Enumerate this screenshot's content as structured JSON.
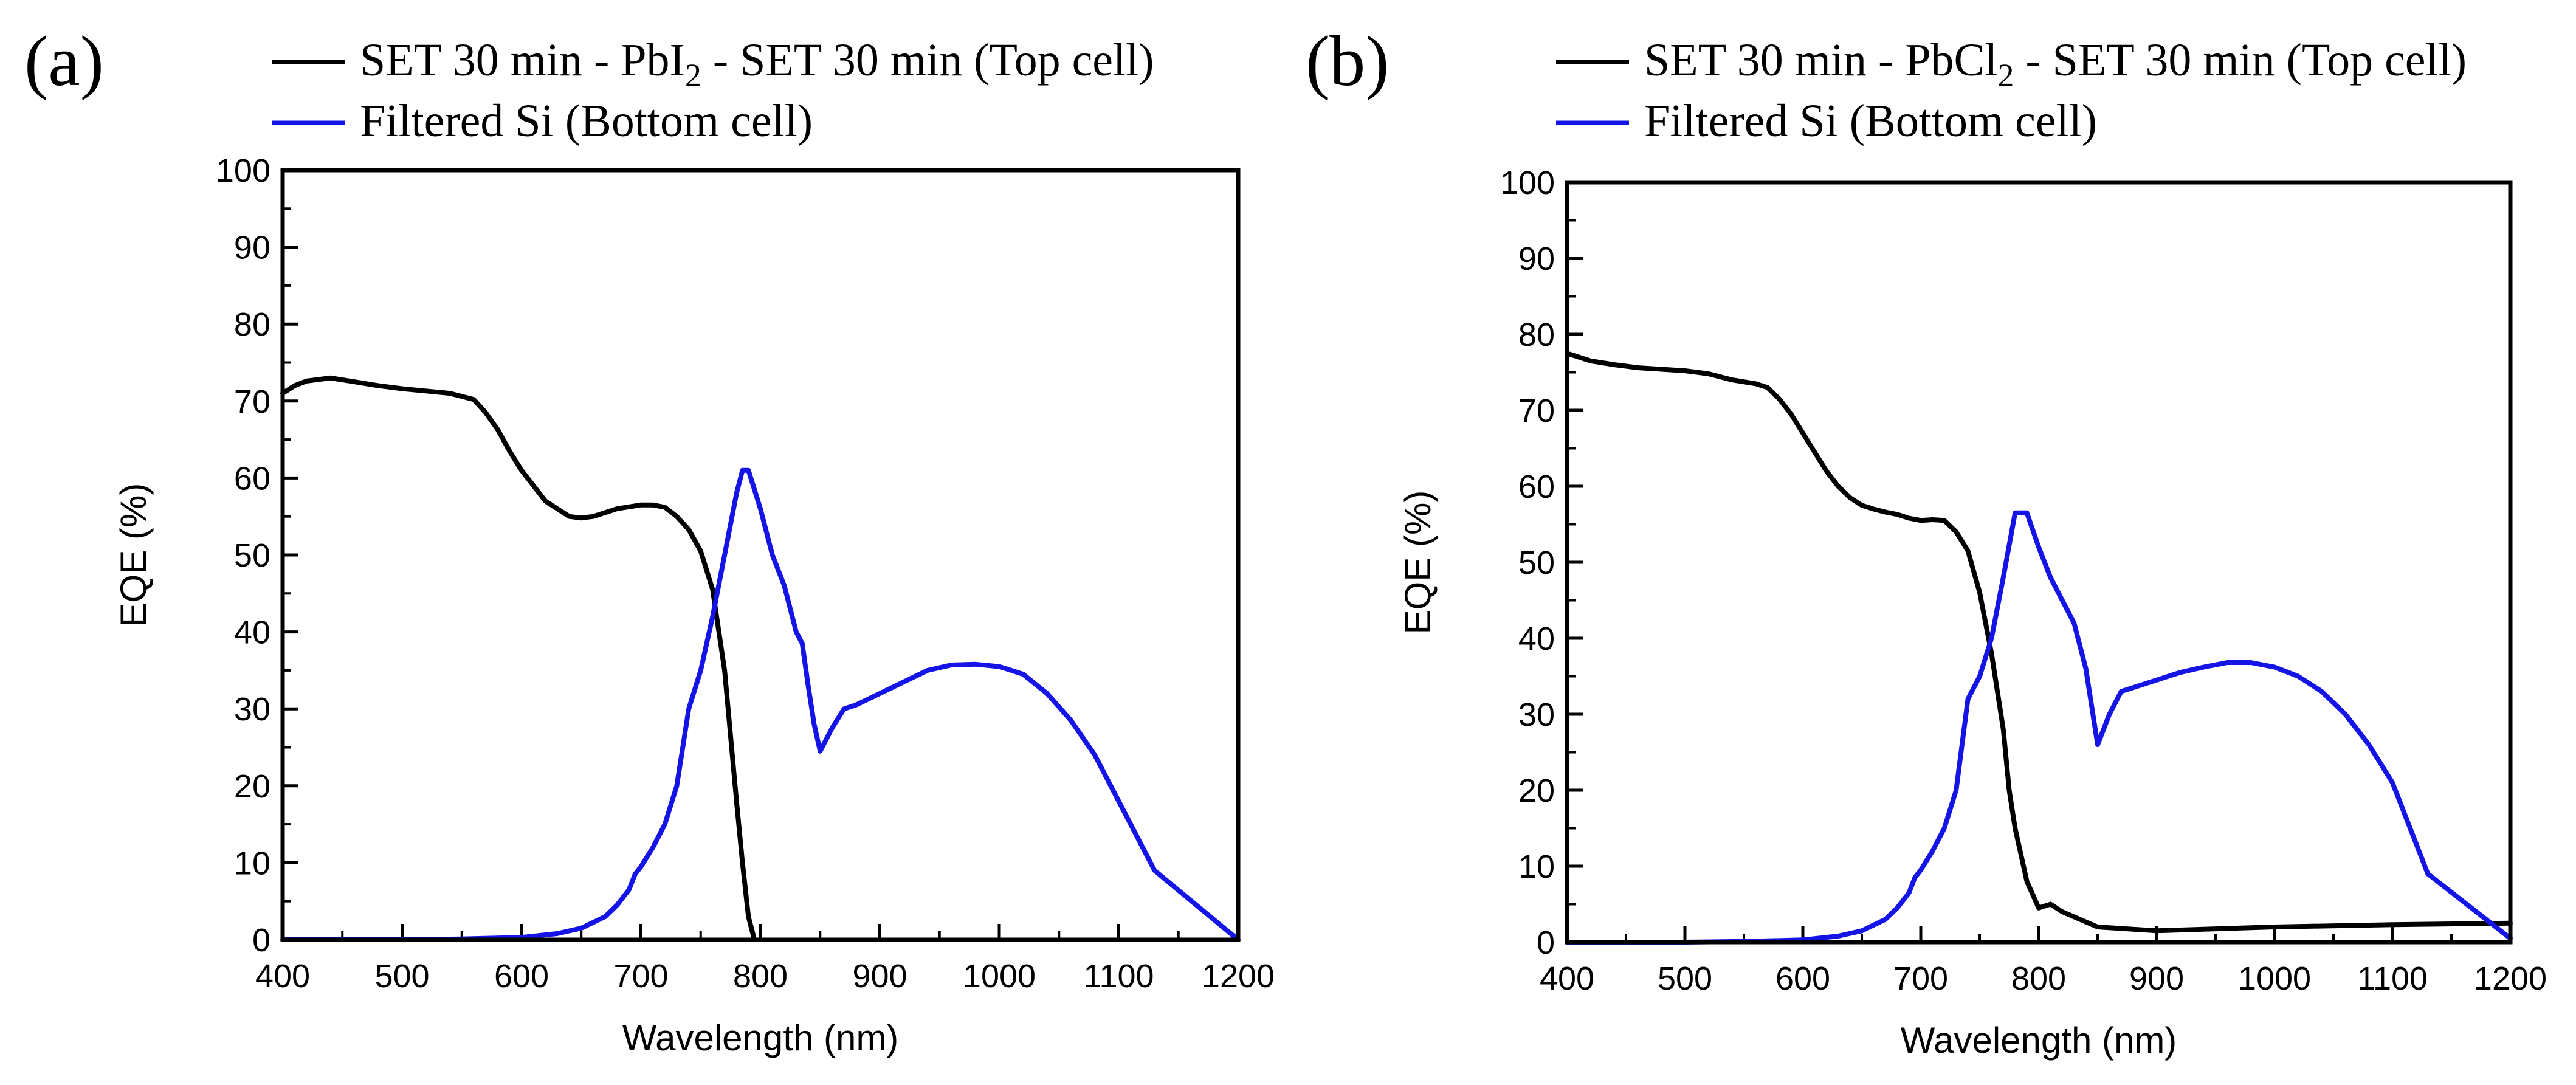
{
  "colors": {
    "top": "#000000",
    "bottom": "#1414e6",
    "axis": "#000000"
  },
  "chart_data": [
    {
      "type": "line",
      "panel_label": "(a)",
      "xlabel": "Wavelength (nm)",
      "ylabel": "EQE (%)",
      "xlim": [
        400,
        1200
      ],
      "ylim": [
        0,
        100
      ],
      "xticks": [
        400,
        500,
        600,
        700,
        800,
        900,
        1000,
        1100,
        1200
      ],
      "yticks": [
        0,
        10,
        20,
        30,
        40,
        50,
        60,
        70,
        80,
        90,
        100
      ],
      "legend": [
        {
          "pre": "SET 30 min - PbI",
          "sub": "2",
          "post": " - SET 30 min (Top cell)",
          "color_key": "top"
        },
        {
          "pre": "Filtered Si (Bottom cell)",
          "sub": "",
          "post": "",
          "color_key": "bottom"
        }
      ],
      "series": [
        {
          "name": "SET 30 min - PbI2 - SET 30 min (Top cell)",
          "color_key": "top",
          "x": [
            400,
            410,
            420,
            440,
            460,
            480,
            500,
            520,
            540,
            560,
            570,
            580,
            590,
            600,
            620,
            640,
            650,
            660,
            680,
            700,
            710,
            720,
            730,
            740,
            750,
            760,
            770,
            780,
            785,
            790,
            795
          ],
          "y": [
            71,
            72,
            72.6,
            73,
            72.5,
            72,
            71.6,
            71.3,
            71,
            70.2,
            68.5,
            66.3,
            63.5,
            61,
            57,
            55,
            54.8,
            55,
            56,
            56.5,
            56.5,
            56.2,
            55,
            53.3,
            50.5,
            45.5,
            35,
            18,
            10,
            3,
            0
          ]
        },
        {
          "name": "Filtered Si (Bottom cell)",
          "color_key": "bottom",
          "x": [
            400,
            450,
            500,
            550,
            600,
            630,
            650,
            670,
            680,
            690,
            695,
            700,
            710,
            720,
            730,
            740,
            750,
            760,
            770,
            780,
            785,
            790,
            800,
            810,
            820,
            830,
            835,
            840,
            845,
            850,
            860,
            870,
            880,
            900,
            920,
            940,
            960,
            980,
            1000,
            1020,
            1040,
            1060,
            1080,
            1100,
            1130,
            1200
          ],
          "y": [
            0,
            0,
            0,
            0.1,
            0.3,
            0.8,
            1.5,
            3,
            4.5,
            6.5,
            8.5,
            9.5,
            12,
            15,
            20,
            30,
            35,
            42,
            50,
            58,
            61,
            61,
            56,
            50,
            46,
            40,
            38.5,
            33,
            28,
            24.5,
            27.5,
            30,
            30.5,
            32,
            33.5,
            35,
            35.7,
            35.8,
            35.5,
            34.5,
            32,
            28.5,
            24,
            18,
            9,
            0
          ]
        }
      ]
    },
    {
      "type": "line",
      "panel_label": "(b)",
      "xlabel": "Wavelength (nm)",
      "ylabel": "EQE (%)",
      "xlim": [
        400,
        1200
      ],
      "ylim": [
        0,
        100
      ],
      "xticks": [
        400,
        500,
        600,
        700,
        800,
        900,
        1000,
        1100,
        1200
      ],
      "yticks": [
        0,
        10,
        20,
        30,
        40,
        50,
        60,
        70,
        80,
        90,
        100
      ],
      "legend": [
        {
          "pre": "SET 30 min - PbCl",
          "sub": "2",
          "post": " - SET 30 min (Top cell)",
          "color_key": "top"
        },
        {
          "pre": "Filtered Si (Bottom cell)",
          "sub": "",
          "post": "",
          "color_key": "bottom"
        }
      ],
      "series": [
        {
          "name": "SET 30 min - PbCl2 - SET 30 min (Top cell)",
          "color_key": "top",
          "x": [
            400,
            420,
            440,
            460,
            480,
            500,
            520,
            540,
            560,
            570,
            580,
            590,
            600,
            610,
            620,
            630,
            640,
            650,
            660,
            670,
            680,
            690,
            700,
            710,
            720,
            730,
            740,
            750,
            760,
            770,
            775,
            780,
            790,
            800,
            810,
            820,
            850,
            900,
            1000,
            1100,
            1200
          ],
          "y": [
            77.5,
            76.5,
            76,
            75.6,
            75.4,
            75.2,
            74.8,
            74,
            73.5,
            73,
            71.5,
            69.5,
            67,
            64.5,
            62,
            60,
            58.5,
            57.5,
            57,
            56.6,
            56.3,
            55.8,
            55.5,
            55.6,
            55.5,
            54,
            51.5,
            46,
            38,
            28,
            20,
            15,
            8,
            4.5,
            5,
            4,
            2,
            1.5,
            2,
            2.3,
            2.5
          ]
        },
        {
          "name": "Filtered Si (Bottom cell)",
          "color_key": "bottom",
          "x": [
            400,
            450,
            500,
            550,
            600,
            630,
            650,
            670,
            680,
            690,
            695,
            700,
            710,
            720,
            730,
            740,
            750,
            760,
            770,
            780,
            790,
            800,
            810,
            820,
            830,
            840,
            845,
            850,
            860,
            870,
            880,
            900,
            920,
            940,
            960,
            980,
            1000,
            1020,
            1040,
            1060,
            1080,
            1100,
            1130,
            1200
          ],
          "y": [
            0,
            0,
            0,
            0.1,
            0.3,
            0.8,
            1.5,
            3,
            4.5,
            6.5,
            8.5,
            9.5,
            12,
            15,
            20,
            32,
            35,
            40,
            48,
            56.5,
            56.5,
            52,
            48,
            45,
            42,
            36,
            31,
            26,
            30,
            33,
            33.5,
            34.5,
            35.5,
            36.2,
            36.8,
            36.8,
            36.2,
            35,
            33,
            30,
            26,
            21,
            9,
            0.5
          ]
        }
      ]
    }
  ]
}
